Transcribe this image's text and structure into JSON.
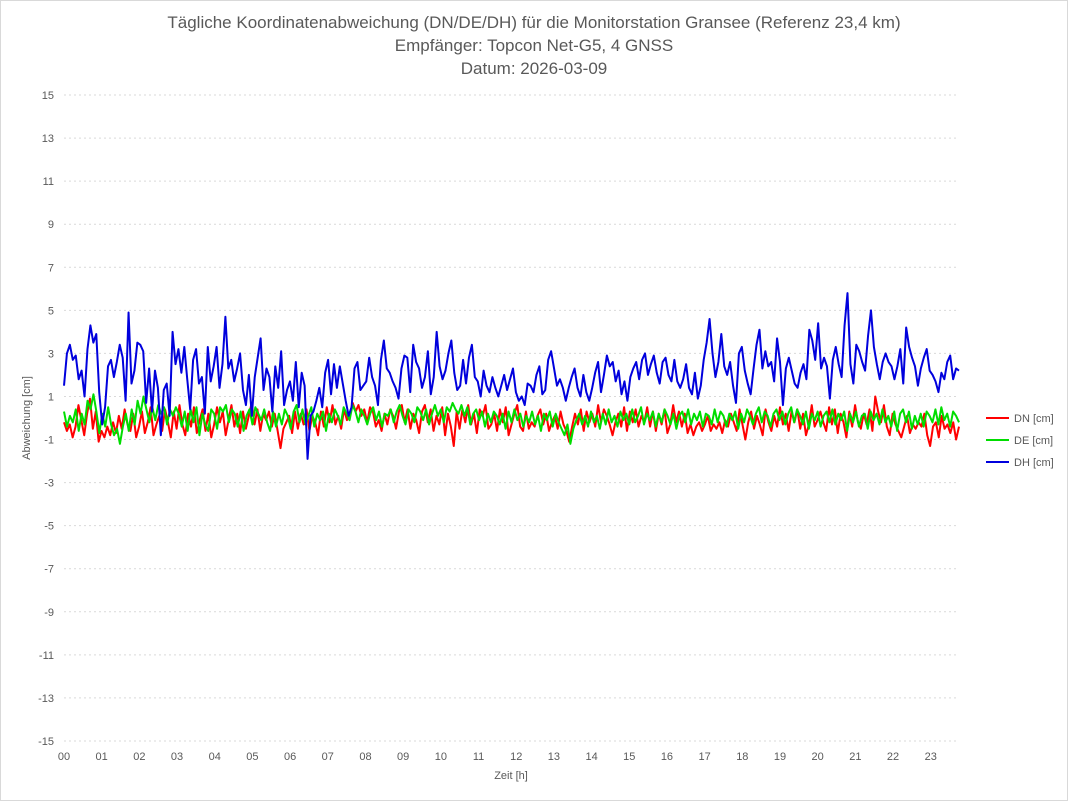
{
  "chart_data": {
    "type": "line",
    "title": [
      "Tägliche Koordinatenabweichung (DN/DE/DH) für die Monitorstation Gransee (Referenz 23,4 km)",
      "Empfänger: Topcon Net-G5, 4 GNSS",
      "Datum: 2026-03-09"
    ],
    "xlabel": "Zeit [h]",
    "ylabel": "Abweichung [cm]",
    "xlim": [
      0,
      23.75
    ],
    "ylim": [
      -15,
      15
    ],
    "x_ticks": [
      0,
      1,
      2,
      3,
      4,
      5,
      6,
      7,
      8,
      9,
      10,
      11,
      12,
      13,
      14,
      15,
      16,
      17,
      18,
      19,
      20,
      21,
      22,
      23
    ],
    "x_tick_labels": [
      "00",
      "01",
      "02",
      "03",
      "04",
      "05",
      "06",
      "07",
      "08",
      "09",
      "10",
      "11",
      "12",
      "13",
      "14",
      "15",
      "16",
      "17",
      "18",
      "19",
      "20",
      "21",
      "22",
      "23"
    ],
    "y_ticks": [
      15,
      13,
      11,
      9,
      7,
      5,
      3,
      1,
      -1,
      -3,
      -5,
      -7,
      -9,
      -11,
      -13,
      -15
    ],
    "y_tick_labels": [
      "15",
      "13",
      "11",
      "9",
      "7",
      "5",
      "3",
      "1",
      "-1",
      "-3",
      "-5",
      "-7",
      "-9",
      "-11",
      "-13",
      "-15"
    ],
    "grid": "horizontal, dotted",
    "legend_position": "right",
    "x_step_h": 0.0833,
    "series": [
      {
        "name": "DN [cm]",
        "color": "#ff0000",
        "values": [
          -0.2,
          -0.6,
          -0.3,
          -0.9,
          -0.4,
          0.6,
          -0.1,
          -0.8,
          0.2,
          0.9,
          -0.5,
          0.3,
          -1.1,
          -0.6,
          -0.9,
          -0.4,
          -0.8,
          -0.2,
          -0.7,
          0.1,
          -0.5,
          0.4,
          -0.3,
          -0.6,
          0.2,
          -0.9,
          -0.4,
          0.3,
          -0.7,
          -0.2,
          0.5,
          -0.8,
          -0.3,
          0.1,
          -0.6,
          0.4,
          -0.2,
          -0.9,
          0.3,
          -0.5,
          0.6,
          -0.3,
          -0.8,
          0.2,
          -0.4,
          0.5,
          -0.7,
          -0.1,
          0.4,
          -0.6,
          0.2,
          -0.9,
          -0.3,
          0.5,
          -0.2,
          0.3,
          -0.8,
          -0.1,
          0.6,
          -0.4,
          0.2,
          -0.7,
          0.3,
          -0.5,
          0.1,
          0.7,
          -0.3,
          0.4,
          -0.6,
          0.2,
          -0.1,
          0.3,
          -0.4,
          0.2,
          -0.6,
          -1.4,
          -0.5,
          -0.2,
          0.1,
          -0.7,
          0.3,
          -0.5,
          0.2,
          -0.3,
          0.4,
          -0.6,
          0.1,
          -0.2,
          -0.8,
          0.3,
          -0.4,
          0.5,
          -0.2,
          0.6,
          -0.3,
          0.1,
          -0.5,
          0.4,
          -0.1,
          0.2,
          0.7,
          0.3,
          0.6,
          0.1,
          0.4,
          -0.2,
          0.5,
          0.3,
          -0.4,
          -0.1,
          -0.6,
          0.2,
          -0.3,
          0.4,
          0.1,
          -0.5,
          0.3,
          0.6,
          -0.2,
          0.4,
          -0.5,
          0.2,
          -0.1,
          -0.7,
          0.3,
          0.6,
          -0.2,
          0.4,
          -0.6,
          0.1,
          -0.3,
          0.5,
          -0.8,
          0.2,
          -0.4,
          -1.3,
          0.3,
          -0.5,
          0.4,
          -0.2,
          0.6,
          -0.3,
          0.2,
          -0.7,
          0.4,
          0.1,
          0.6,
          -0.5,
          -0.3,
          0.2,
          -0.6,
          0.4,
          -0.2,
          0.5,
          -0.8,
          -0.3,
          0.2,
          0.6,
          -0.4,
          -0.6,
          0.3,
          -0.5,
          -0.2,
          -0.4,
          0.1,
          0.4,
          -0.3,
          0.2,
          -0.6,
          -0.2,
          0.1,
          -0.5,
          0.3,
          -0.3,
          -0.6,
          -1.1,
          -0.4,
          0.2,
          -0.3,
          0.4,
          -0.6,
          0.3,
          -0.2,
          0.2,
          -0.4,
          0.6,
          -0.2,
          0.4,
          0.1,
          -0.3,
          -0.8,
          -0.2,
          0.2,
          -0.4,
          0.5,
          -0.6,
          0.3,
          -0.2,
          0.4,
          -0.4,
          0.1,
          -0.2,
          0.5,
          -0.4,
          0.3,
          -0.6,
          0.2,
          -0.3,
          0.4,
          -0.7,
          -0.3,
          0.6,
          -0.2,
          0.3,
          -0.4,
          0.2,
          -0.7,
          -0.3,
          -0.8,
          -0.4,
          -0.2,
          -0.6,
          -0.3,
          0.1,
          -0.6,
          -0.3,
          -0.5,
          -0.2,
          -0.7,
          -0.1,
          -0.4,
          0.2,
          -0.2,
          -0.6,
          0.4,
          -0.3,
          -1.0,
          -0.2,
          0.3,
          -0.5,
          0.1,
          -0.3,
          -0.8,
          0.4,
          -0.2,
          -0.6,
          0.1,
          -0.4,
          0.5,
          -0.3,
          0.2,
          -0.6,
          0.3,
          -0.2,
          0.4,
          -0.5,
          0.2,
          -0.8,
          -0.3,
          0.6,
          -0.4,
          -0.1,
          0.3,
          -0.2,
          -0.6,
          0.5,
          -0.3,
          0.4,
          -0.7,
          0.2,
          -0.2,
          -0.9,
          0.3,
          -0.4,
          0.6,
          -0.2,
          -0.5,
          0.2,
          -0.3,
          0.4,
          -0.6,
          1.0,
          0.3,
          -0.2,
          0.6,
          -0.4,
          -0.8,
          0.2,
          -0.3,
          -0.6,
          -0.9,
          -0.4,
          0.1,
          -0.7,
          -0.3,
          -0.5,
          -0.2,
          -0.4,
          0.2,
          -0.8,
          -1.3,
          -0.4,
          -0.2,
          -0.9,
          0.1,
          -0.5,
          -0.3,
          -0.7,
          -0.2,
          -1.0,
          -0.4
        ]
      },
      {
        "name": "DE [cm]",
        "color": "#00dd00",
        "values": [
          0.3,
          -0.4,
          0.1,
          -0.2,
          0.4,
          -0.6,
          0.2,
          -0.3,
          0.8,
          0.4,
          1.1,
          0.3,
          -0.7,
          0.2,
          -0.4,
          0.5,
          -0.3,
          -0.8,
          -0.5,
          -1.2,
          -0.4,
          0.2,
          -0.6,
          0.4,
          -0.3,
          0.8,
          0.2,
          1.0,
          0.4,
          -0.2,
          0.5,
          -0.1,
          0.6,
          0.2,
          0.5,
          -0.3,
          0.4,
          0.1,
          0.5,
          0.2,
          -0.4,
          0.3,
          -0.6,
          0.4,
          -0.2,
          0.5,
          -0.8,
          0.2,
          -0.3,
          -0.6,
          0.4,
          0.2,
          -0.5,
          0.5,
          0.3,
          0.6,
          -0.2,
          0.4,
          0.2,
          -0.4,
          0.3,
          -0.6,
          0.1,
          0.4,
          -0.3,
          0.5,
          0.2,
          -0.1,
          0.4,
          -0.2,
          -0.6,
          0.3,
          -0.4,
          0.2,
          -0.3,
          0.4,
          0.1,
          -0.5,
          0.3,
          0.6,
          -0.2,
          0.4,
          -0.3,
          0.1,
          0.5,
          -0.4,
          0.2,
          -0.1,
          0.3,
          -0.6,
          0.2,
          -0.2,
          0.4,
          0.1,
          -0.3,
          0.5,
          0.2,
          -0.1,
          0.6,
          0.3,
          -0.2,
          0.4,
          0.1,
          -0.3,
          0.2,
          0.5,
          -0.1,
          0.3,
          -0.4,
          0.2,
          0.1,
          0.4,
          -0.2,
          0.3,
          0.6,
          0.1,
          -0.3,
          0.4,
          0.2,
          -0.2,
          0.5,
          0.3,
          -0.1,
          0.4,
          -0.3,
          0.2,
          0.6,
          0.1,
          0.4,
          -0.2,
          0.5,
          0.3,
          0.7,
          0.4,
          0.2,
          0.6,
          0.1,
          0.5,
          -0.3,
          0.2,
          0.4,
          -0.1,
          0.3,
          -0.4,
          0.2,
          -0.2,
          0.3,
          0.1,
          -0.3,
          0.2,
          -0.5,
          0.3,
          -0.2,
          0.4,
          -0.1,
          0.2,
          -0.4,
          0.1,
          -0.2,
          0.3,
          -0.3,
          0.1,
          -0.6,
          0.2,
          -0.1,
          0.3,
          -0.4,
          0.2,
          -0.2,
          -0.5,
          -0.8,
          -0.3,
          -1.2,
          -0.5,
          -0.1,
          0.2,
          -0.3,
          0.1,
          -0.4,
          0.3,
          -0.2,
          0.1,
          -0.5,
          0.2,
          -0.3,
          0.4,
          -0.2,
          0.1,
          -0.4,
          0.3,
          -0.1,
          0.2,
          -0.3,
          0.4,
          -0.2,
          0.1,
          0.5,
          -0.3,
          0.2,
          -0.1,
          0.3,
          -0.4,
          0.2,
          -0.2,
          0.4,
          0.1,
          -0.3,
          0.2,
          -0.5,
          0.1,
          0.3,
          -0.2,
          0.4,
          -0.3,
          0.2,
          -0.1,
          0.3,
          -0.4,
          0.2,
          0.1,
          -0.3,
          0.4,
          -0.2,
          0.3,
          0.1,
          -0.4,
          0.2,
          -0.1,
          0.3,
          -0.5,
          0.2,
          -0.2,
          0.4,
          0.1,
          -0.3,
          0.2,
          0.5,
          -0.2,
          0.3,
          0.1,
          -0.4,
          0.2,
          0.4,
          -0.1,
          0.3,
          -0.3,
          0.2,
          0.5,
          -0.2,
          0.4,
          0.1,
          -0.3,
          0.3,
          -0.5,
          0.2,
          -0.1,
          0.3,
          -0.4,
          0.1,
          0.3,
          -0.2,
          0.4,
          -0.3,
          0.2,
          -0.1,
          0.3,
          -0.6,
          0.2,
          -0.2,
          0.3,
          -0.4,
          0.1,
          0.2,
          -0.5,
          0.3,
          -0.1,
          0.2,
          -0.3,
          0.4,
          -0.2,
          0.1,
          -0.4,
          0.3,
          -0.6,
          0.2,
          0.4,
          -0.2,
          0.3,
          -0.5,
          0.1,
          -0.3,
          0.2,
          -0.4,
          0.3,
          0.1,
          -0.2,
          0.4,
          -0.3,
          0.5,
          -0.1,
          0.2,
          -0.4,
          0.3,
          0.1,
          -0.2
        ]
      },
      {
        "name": "DH [cm]",
        "color": "#0000dd",
        "values": [
          1.5,
          3.0,
          3.4,
          2.7,
          2.9,
          1.8,
          2.2,
          1.0,
          3.2,
          4.3,
          3.5,
          3.9,
          1.2,
          -0.3,
          0.5,
          2.4,
          2.7,
          1.9,
          2.6,
          3.4,
          2.8,
          0.8,
          4.9,
          1.6,
          2.2,
          3.5,
          3.4,
          3.1,
          0.7,
          2.3,
          0.3,
          2.2,
          1.4,
          -0.8,
          1.3,
          1.6,
          0.1,
          4.0,
          2.5,
          3.2,
          2.1,
          3.3,
          1.8,
          0.4,
          2.7,
          3.2,
          1.6,
          1.9,
          0.2,
          3.3,
          1.7,
          2.4,
          3.3,
          1.4,
          2.5,
          4.7,
          2.3,
          2.7,
          1.7,
          2.3,
          3.0,
          1.3,
          0.6,
          2.0,
          0.1,
          1.9,
          2.8,
          3.7,
          1.3,
          2.3,
          1.9,
          0.3,
          2.4,
          1.4,
          3.1,
          0.6,
          1.3,
          1.7,
          0.8,
          2.6,
          0.5,
          2.1,
          1.5,
          -1.9,
          0.1,
          0.3,
          0.8,
          1.4,
          0.5,
          2.1,
          2.7,
          1.1,
          2.5,
          1.4,
          2.4,
          1.6,
          0.8,
          0.1,
          0.5,
          2.3,
          2.6,
          1.3,
          1.5,
          1.7,
          2.8,
          1.9,
          1.5,
          0.6,
          2.7,
          3.6,
          2.3,
          2.1,
          1.7,
          1.4,
          0.9,
          2.3,
          2.9,
          2.8,
          1.2,
          3.4,
          2.6,
          2.3,
          1.4,
          1.9,
          3.1,
          1.1,
          1.9,
          4.0,
          2.4,
          1.8,
          2.2,
          3.0,
          3.6,
          2.1,
          1.3,
          1.5,
          2.7,
          1.6,
          2.8,
          3.4,
          1.9,
          1.7,
          1.0,
          2.2,
          1.5,
          1.2,
          1.9,
          1.4,
          1.0,
          1.5,
          2.0,
          1.3,
          1.8,
          2.3,
          1.2,
          0.8,
          1.0,
          0.6,
          1.6,
          1.5,
          1.2,
          2.0,
          2.4,
          1.1,
          1.3,
          2.7,
          3.1,
          2.3,
          1.5,
          1.8,
          1.4,
          0.8,
          1.4,
          1.9,
          2.3,
          1.4,
          1.0,
          2.0,
          1.2,
          0.8,
          1.4,
          2.1,
          2.6,
          1.2,
          2.0,
          2.9,
          2.4,
          2.6,
          1.7,
          2.2,
          1.1,
          1.7,
          0.8,
          1.9,
          2.3,
          2.6,
          1.8,
          2.7,
          3.0,
          2.0,
          2.5,
          2.9,
          2.1,
          1.6,
          2.6,
          2.8,
          2.0,
          1.7,
          2.7,
          1.7,
          1.4,
          1.8,
          2.5,
          1.4,
          1.1,
          2.1,
          0.9,
          1.5,
          2.7,
          3.5,
          4.6,
          3.0,
          1.9,
          2.6,
          3.9,
          2.4,
          2.0,
          2.6,
          1.5,
          0.7,
          3.0,
          3.3,
          2.2,
          1.6,
          1.1,
          2.3,
          3.4,
          4.1,
          2.3,
          3.1,
          2.4,
          2.6,
          1.7,
          3.7,
          2.6,
          0.6,
          2.3,
          2.8,
          2.2,
          1.6,
          1.4,
          2.1,
          2.5,
          1.8,
          4.1,
          3.6,
          2.7,
          4.4,
          2.3,
          2.8,
          2.4,
          0.9,
          2.7,
          3.3,
          2.5,
          1.9,
          4.3,
          5.8,
          2.5,
          1.6,
          3.4,
          3.1,
          2.6,
          2.2,
          3.8,
          5.0,
          3.3,
          2.5,
          1.8,
          2.6,
          3.0,
          2.6,
          2.4,
          1.8,
          2.4,
          3.2,
          1.6,
          4.2,
          3.3,
          2.8,
          2.4,
          1.5,
          2.3,
          2.8,
          3.2,
          2.2,
          2.0,
          1.7,
          1.2,
          2.1,
          1.8,
          2.6,
          2.9,
          1.8,
          2.3,
          2.2
        ]
      }
    ]
  }
}
